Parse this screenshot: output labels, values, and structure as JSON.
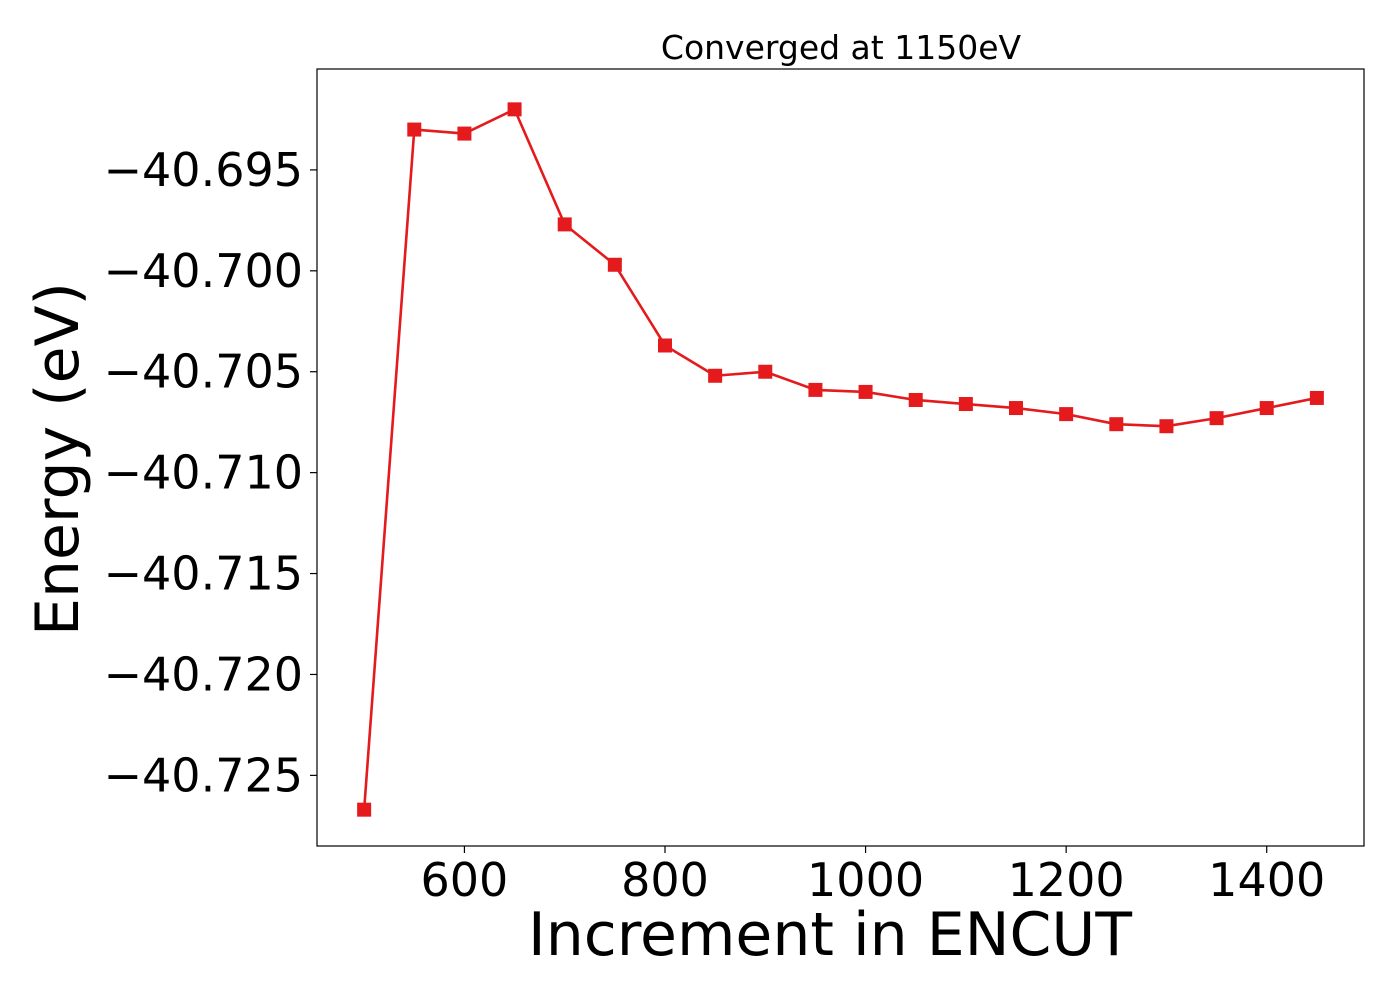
{
  "chart_data": {
    "type": "line",
    "title": "Converged at 1150eV",
    "xlabel": "Increment in ENCUT",
    "ylabel": "Energy (eV)",
    "x": [
      500,
      550,
      600,
      650,
      700,
      750,
      800,
      850,
      900,
      950,
      1000,
      1050,
      1100,
      1150,
      1200,
      1250,
      1300,
      1350,
      1400,
      1450
    ],
    "series": [
      {
        "values": [
          -40.7267,
          -40.693,
          -40.6932,
          -40.692,
          -40.6977,
          -40.6997,
          -40.7037,
          -40.7052,
          -40.705,
          -40.7059,
          -40.706,
          -40.7064,
          -40.7066,
          -40.7068,
          -40.7071,
          -40.7076,
          -40.7077,
          -40.7073,
          -40.7068,
          -40.7063
        ],
        "color": "#e41a1c",
        "marker": "square"
      }
    ],
    "xlim": [
      453,
      1497
    ],
    "ylim": [
      -40.7285,
      -40.69
    ],
    "xticks": [
      600,
      800,
      1000,
      1200,
      1400
    ],
    "xtick_labels": [
      "600",
      "800",
      "1000",
      "1200",
      "1400"
    ],
    "yticks": [
      -40.695,
      -40.7,
      -40.705,
      -40.71,
      -40.715,
      -40.72,
      -40.725
    ],
    "ytick_labels": [
      "−40.695",
      "−40.700",
      "−40.705",
      "−40.710",
      "−40.715",
      "−40.720",
      "−40.725"
    ],
    "grid": false,
    "legend": "none"
  }
}
